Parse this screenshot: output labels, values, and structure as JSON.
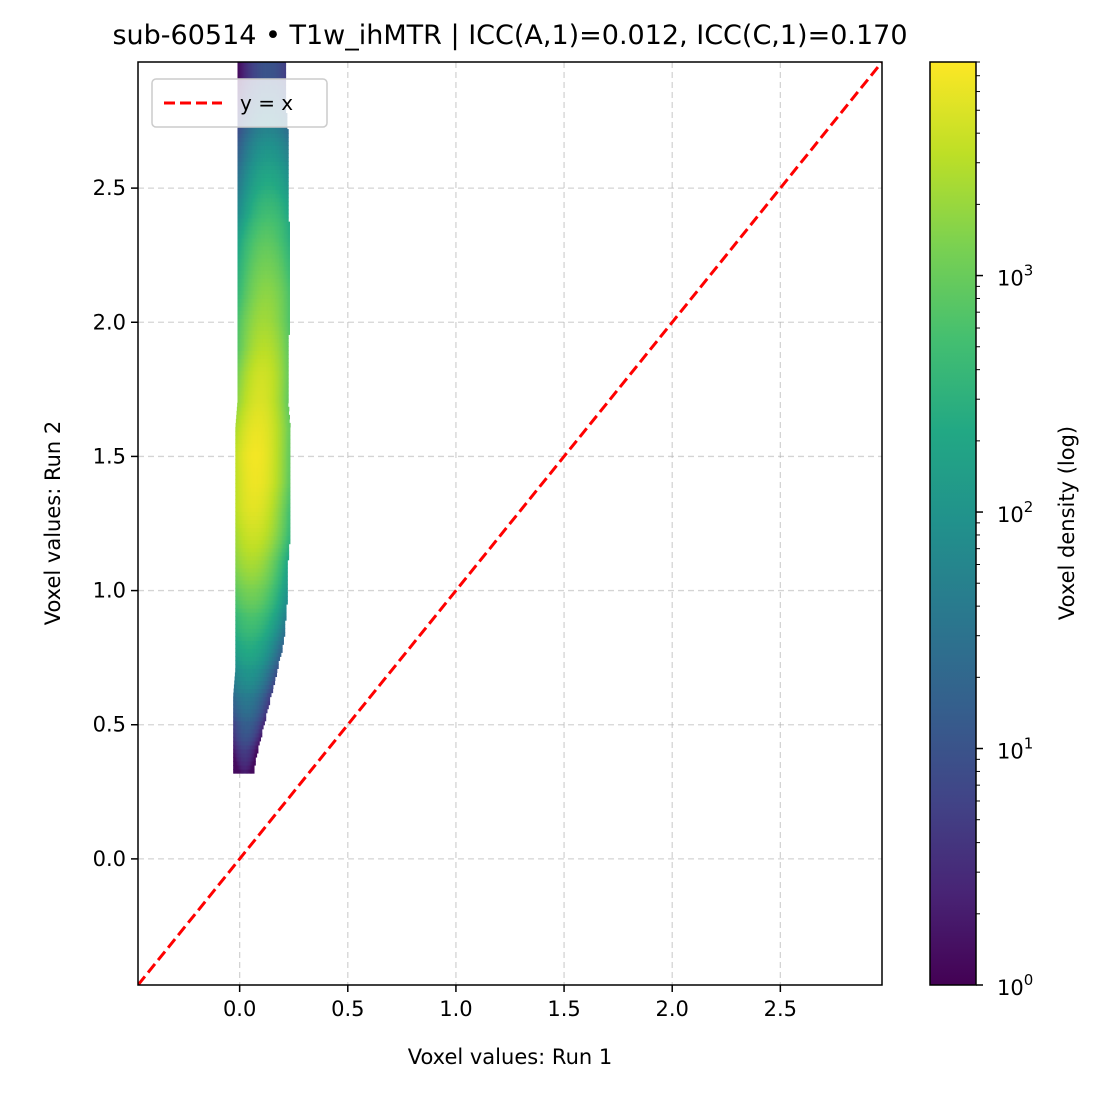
{
  "chart_data": {
    "type": "heatmap",
    "title": "sub-60514 • T1w_ihMTR | ICC(A,1)=0.012, ICC(C,1)=0.170",
    "xlabel": "Voxel values: Run 1",
    "ylabel": "Voxel values: Run 2",
    "xlim": [
      -0.47,
      2.97
    ],
    "ylim": [
      -0.47,
      2.97
    ],
    "x_ticks": [
      0.0,
      0.5,
      1.0,
      1.5,
      2.0,
      2.5
    ],
    "y_ticks": [
      0.0,
      0.5,
      1.0,
      1.5,
      2.0,
      2.5
    ],
    "x_tick_labels": [
      "0.0",
      "0.5",
      "1.0",
      "1.5",
      "2.0",
      "2.5"
    ],
    "y_tick_labels": [
      "0.0",
      "0.5",
      "1.0",
      "1.5",
      "2.0",
      "2.5"
    ],
    "grid": true,
    "reference_line": {
      "label": "y = x",
      "color": "#ff0000",
      "style": "dashed"
    },
    "legend_position": "top-left",
    "colormap": "viridis",
    "colorbar": {
      "label": "Voxel density (log)",
      "scale": "log",
      "range": [
        1,
        8000
      ],
      "ticks": [
        {
          "value": 1,
          "base": "10",
          "exp": "0"
        },
        {
          "value": 10,
          "base": "10",
          "exp": "1"
        },
        {
          "value": 100,
          "base": "10",
          "exp": "2"
        },
        {
          "value": 1000,
          "base": "10",
          "exp": "3"
        }
      ]
    },
    "density_profile": [
      {
        "y": 0.32,
        "x_center": 0.02,
        "x_min": -0.03,
        "x_max": 0.06,
        "peak": 2
      },
      {
        "y": 0.4,
        "x_center": 0.02,
        "x_min": -0.03,
        "x_max": 0.08,
        "peak": 5
      },
      {
        "y": 0.5,
        "x_center": 0.03,
        "x_min": -0.03,
        "x_max": 0.11,
        "peak": 15
      },
      {
        "y": 0.6,
        "x_center": 0.03,
        "x_min": -0.03,
        "x_max": 0.14,
        "peak": 40
      },
      {
        "y": 0.7,
        "x_center": 0.04,
        "x_min": -0.02,
        "x_max": 0.17,
        "peak": 110
      },
      {
        "y": 0.8,
        "x_center": 0.04,
        "x_min": -0.02,
        "x_max": 0.2,
        "peak": 280
      },
      {
        "y": 0.9,
        "x_center": 0.05,
        "x_min": -0.02,
        "x_max": 0.21,
        "peak": 600
      },
      {
        "y": 1.0,
        "x_center": 0.05,
        "x_min": -0.02,
        "x_max": 0.22,
        "peak": 1300
      },
      {
        "y": 1.1,
        "x_center": 0.05,
        "x_min": -0.02,
        "x_max": 0.22,
        "peak": 2500
      },
      {
        "y": 1.2,
        "x_center": 0.06,
        "x_min": -0.02,
        "x_max": 0.23,
        "peak": 4000
      },
      {
        "y": 1.3,
        "x_center": 0.06,
        "x_min": -0.02,
        "x_max": 0.23,
        "peak": 5500
      },
      {
        "y": 1.4,
        "x_center": 0.07,
        "x_min": -0.02,
        "x_max": 0.23,
        "peak": 6500
      },
      {
        "y": 1.5,
        "x_center": 0.07,
        "x_min": -0.02,
        "x_max": 0.23,
        "peak": 7000
      },
      {
        "y": 1.6,
        "x_center": 0.08,
        "x_min": -0.02,
        "x_max": 0.23,
        "peak": 6000
      },
      {
        "y": 1.7,
        "x_center": 0.09,
        "x_min": -0.01,
        "x_max": 0.22,
        "peak": 4800
      },
      {
        "y": 1.8,
        "x_center": 0.1,
        "x_min": -0.01,
        "x_max": 0.22,
        "peak": 4200
      },
      {
        "y": 1.9,
        "x_center": 0.11,
        "x_min": -0.01,
        "x_max": 0.22,
        "peak": 3000
      },
      {
        "y": 2.0,
        "x_center": 0.11,
        "x_min": -0.01,
        "x_max": 0.23,
        "peak": 2200
      },
      {
        "y": 2.1,
        "x_center": 0.12,
        "x_min": -0.01,
        "x_max": 0.23,
        "peak": 1700
      },
      {
        "y": 2.2,
        "x_center": 0.12,
        "x_min": -0.01,
        "x_max": 0.23,
        "peak": 1200
      },
      {
        "y": 2.3,
        "x_center": 0.12,
        "x_min": -0.01,
        "x_max": 0.23,
        "peak": 800
      },
      {
        "y": 2.4,
        "x_center": 0.13,
        "x_min": -0.01,
        "x_max": 0.22,
        "peak": 480
      },
      {
        "y": 2.5,
        "x_center": 0.13,
        "x_min": -0.01,
        "x_max": 0.22,
        "peak": 250
      },
      {
        "y": 2.6,
        "x_center": 0.13,
        "x_min": -0.01,
        "x_max": 0.22,
        "peak": 130
      },
      {
        "y": 2.7,
        "x_center": 0.13,
        "x_min": -0.01,
        "x_max": 0.22,
        "peak": 60
      },
      {
        "y": 2.8,
        "x_center": 0.13,
        "x_min": -0.01,
        "x_max": 0.21,
        "peak": 25
      },
      {
        "y": 2.9,
        "x_center": 0.13,
        "x_min": -0.01,
        "x_max": 0.21,
        "peak": 10
      }
    ]
  }
}
